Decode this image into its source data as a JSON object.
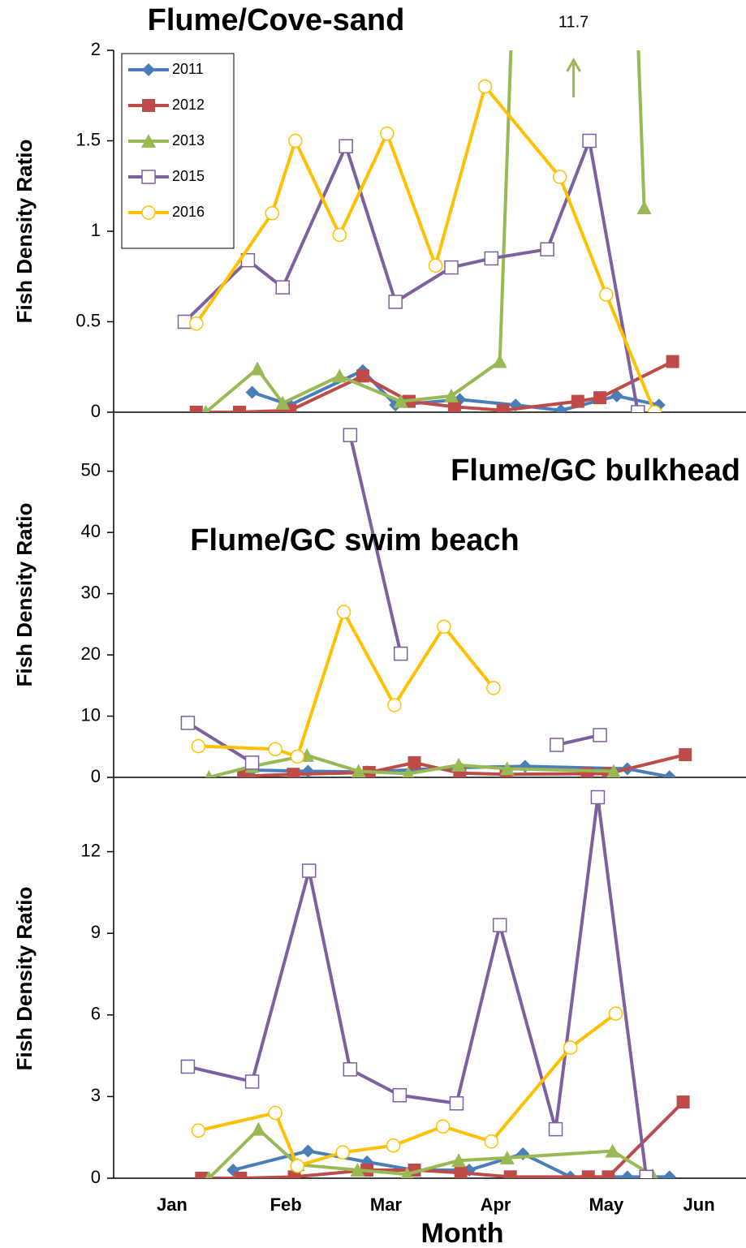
{
  "chart_data": [
    {
      "type": "line",
      "title": "Flume/Cove-sand",
      "y_label": "Fish Density Ratio",
      "xlim": [
        0.446,
        6.446
      ],
      "ylim": [
        0,
        2
      ],
      "yticks": [
        0,
        0.5,
        1,
        1.5,
        2
      ],
      "legend": "upper left",
      "series": [
        {
          "name": "2011",
          "color": "#4a7ebb",
          "marker": "diamond",
          "x": [
            1.76,
            2.12,
            2.81,
            3.12,
            3.73,
            4.26,
            4.69,
            5.22,
            5.62
          ],
          "values": [
            0.11,
            0.04,
            0.23,
            0.04,
            0.07,
            0.04,
            0.01,
            0.09,
            0.04
          ]
        },
        {
          "name": "2012",
          "color": "#be4b48",
          "marker": "square",
          "x": [
            1.23,
            1.64,
            2.12,
            2.81,
            3.25,
            3.68,
            4.14,
            4.85,
            5.06,
            5.75
          ],
          "values": [
            0,
            0,
            0.01,
            0.2,
            0.06,
            0.03,
            0.01,
            0.06,
            0.08,
            0.28
          ]
        },
        {
          "name": "2013",
          "color": "#98b954",
          "marker": "triangle",
          "x": [
            1.32,
            1.81,
            2.05,
            2.59,
            3.17,
            3.65,
            4.11,
            4.81,
            5.48
          ],
          "values": [
            0,
            0.24,
            0.05,
            0.2,
            0.06,
            0.09,
            0.28,
            11.7,
            1.13
          ],
          "value_labels": [
            null,
            null,
            null,
            null,
            null,
            null,
            null,
            "11.7",
            null
          ]
        },
        {
          "name": "2015",
          "color": "#7d60a0",
          "marker": "open-square",
          "x": [
            1.12,
            1.72,
            2.05,
            2.65,
            3.12,
            3.65,
            4.03,
            4.56,
            4.96,
            5.42
          ],
          "values": [
            0.5,
            0.84,
            0.69,
            1.47,
            0.61,
            0.8,
            0.85,
            0.9,
            1.5,
            0
          ]
        },
        {
          "name": "2016",
          "color": "#ffc000",
          "marker": "open-circle",
          "x": [
            1.23,
            1.95,
            2.17,
            2.59,
            3.04,
            3.5,
            3.97,
            4.68,
            5.12,
            5.58
          ],
          "values": [
            0.49,
            1.1,
            1.5,
            0.98,
            1.54,
            0.81,
            1.8,
            1.3,
            0.65,
            0
          ]
        }
      ]
    },
    {
      "type": "line",
      "title": "Flume/GC bulkhead",
      "y_label": "Fish Density Ratio",
      "xlim": [
        0.446,
        6.446
      ],
      "ylim": [
        0,
        59.5
      ],
      "yticks": [
        0,
        10,
        20,
        30,
        40,
        50
      ],
      "series": [
        {
          "color": "#4a7ebb",
          "marker": "diamond",
          "x": [
            1.76,
            2.29,
            2.85,
            3.73,
            4.35,
            5.32,
            5.72
          ],
          "values": [
            1.2,
            1.0,
            0.9,
            1.6,
            1.8,
            1.4,
            0.1
          ]
        },
        {
          "color": "#be4b48",
          "marker": "square",
          "x": [
            1.68,
            2.15,
            2.87,
            3.3,
            3.73,
            4.17,
            4.94,
            5.14,
            5.87
          ],
          "values": [
            0.2,
            0.5,
            0.8,
            2.4,
            0.7,
            0.5,
            0.6,
            0.6,
            3.7
          ]
        },
        {
          "color": "#98b954",
          "marker": "triangle",
          "x": [
            1.35,
            1.76,
            2.28,
            2.77,
            3.24,
            3.72,
            4.18,
            5.19
          ],
          "values": [
            0,
            1.8,
            3.6,
            1.0,
            0.6,
            2.0,
            1.4,
            1.0
          ]
        },
        {
          "color": "#7d60a0",
          "marker": "open-square",
          "x": [
            1.15,
            1.76,
            null,
            2.69,
            3.17,
            null,
            4.65,
            5.06
          ],
          "values": [
            8.9,
            2.4,
            null,
            55.9,
            20.2,
            null,
            5.3,
            6.9
          ]
        },
        {
          "color": "#ffc000",
          "marker": "open-circle",
          "x": [
            1.25,
            1.98,
            2.19,
            2.63,
            3.11,
            3.58,
            4.05
          ],
          "values": [
            5.1,
            4.6,
            3.4,
            27.0,
            11.8,
            24.6,
            14.6
          ]
        }
      ]
    },
    {
      "type": "line",
      "title": "Flume/GC swim beach",
      "y_label": "Fish Density Ratio",
      "x_label": "Month",
      "xlim": [
        0.446,
        6.446
      ],
      "ylim": [
        0,
        14.7
      ],
      "yticks": [
        0,
        3,
        6,
        9,
        12
      ],
      "xticks": [
        {
          "value": 1,
          "label": "Jan"
        },
        {
          "value": 2.08,
          "label": "Feb"
        },
        {
          "value": 3.03,
          "label": "Mar"
        },
        {
          "value": 4.07,
          "label": "Apr"
        },
        {
          "value": 5.12,
          "label": "May"
        },
        {
          "value": 6,
          "label": "Jun"
        }
      ],
      "series": [
        {
          "color": "#4a7ebb",
          "marker": "diamond",
          "x": [
            1.58,
            2.29,
            2.85,
            3.29,
            3.82,
            4.33,
            4.78,
            5.32,
            5.72
          ],
          "values": [
            0.3,
            1.0,
            0.6,
            0.3,
            0.3,
            0.9,
            0.05,
            0.05,
            0.05
          ]
        },
        {
          "color": "#be4b48",
          "marker": "square",
          "x": [
            1.28,
            1.65,
            2.16,
            2.85,
            3.3,
            3.74,
            4.21,
            4.95,
            5.14,
            5.85
          ],
          "values": [
            0,
            0,
            0.05,
            0.3,
            0.3,
            0.2,
            0.05,
            0.05,
            0.05,
            2.8
          ]
        },
        {
          "color": "#98b954",
          "marker": "triangle",
          "x": [
            1.35,
            1.82,
            2.19,
            2.76,
            3.23,
            3.72,
            4.18,
            5.18,
            5.56
          ],
          "values": [
            0,
            1.8,
            0.5,
            0.3,
            0.15,
            0.65,
            0.75,
            1.0,
            0.1
          ]
        },
        {
          "color": "#7d60a0",
          "marker": "open-square",
          "x": [
            1.15,
            1.76,
            2.3,
            2.69,
            3.16,
            3.7,
            4.11,
            4.64,
            5.04,
            5.5
          ],
          "values": [
            4.1,
            3.55,
            11.3,
            4.0,
            3.05,
            2.75,
            9.3,
            1.8,
            14.0,
            0.05
          ]
        },
        {
          "color": "#ffc000",
          "marker": "open-circle",
          "x": [
            1.25,
            1.98,
            2.19,
            2.62,
            3.1,
            3.57,
            4.03,
            4.78,
            5.21
          ],
          "values": [
            1.75,
            2.4,
            0.45,
            0.95,
            1.2,
            1.9,
            1.35,
            4.8,
            6.05
          ]
        }
      ]
    }
  ]
}
